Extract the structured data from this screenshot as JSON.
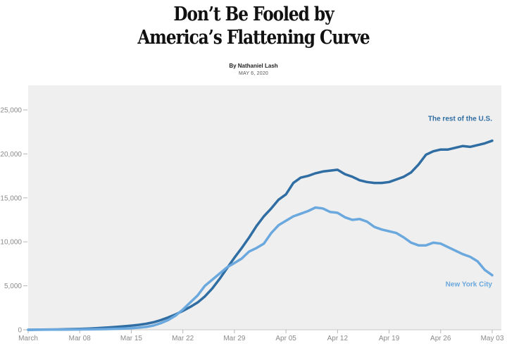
{
  "headline": {
    "line1": "Don’t Be Fooled by",
    "line2": "America’s Flattening Curve"
  },
  "byline": "By Nathaniel Lash",
  "date": "MAY 6, 2020",
  "chart_data": {
    "type": "line",
    "title": "",
    "xlabel": "",
    "ylabel": "",
    "ylim": [
      0,
      25000
    ],
    "yticks": [
      0,
      5000,
      10000,
      15000,
      20000,
      25000
    ],
    "ytick_labels": [
      "0",
      "5,000",
      "10,000",
      "15,000",
      "20,000",
      "25,000"
    ],
    "xticks": [
      {
        "day": 0,
        "label": "March"
      },
      {
        "day": 7,
        "label": "Mar 08"
      },
      {
        "day": 14,
        "label": "Mar 15"
      },
      {
        "day": 21,
        "label": "Mar 22"
      },
      {
        "day": 28,
        "label": "Mar 29"
      },
      {
        "day": 35,
        "label": "Apr 05"
      },
      {
        "day": 42,
        "label": "Apr 12"
      },
      {
        "day": 49,
        "label": "Apr 19"
      },
      {
        "day": 56,
        "label": "Apr 26"
      },
      {
        "day": 63,
        "label": "May 03"
      }
    ],
    "x": [
      0,
      1,
      2,
      3,
      4,
      5,
      6,
      7,
      8,
      9,
      10,
      11,
      12,
      13,
      14,
      15,
      16,
      17,
      18,
      19,
      20,
      21,
      22,
      23,
      24,
      25,
      26,
      27,
      28,
      29,
      30,
      31,
      32,
      33,
      34,
      35,
      36,
      37,
      38,
      39,
      40,
      41,
      42,
      43,
      44,
      45,
      46,
      47,
      48,
      49,
      50,
      51,
      52,
      53,
      54,
      55,
      56,
      57,
      58,
      59,
      60,
      61,
      62,
      63
    ],
    "grid": false,
    "series": [
      {
        "name": "The rest of the U.S.",
        "color": "#2f6da3",
        "values": [
          0,
          10,
          20,
          30,
          40,
          60,
          80,
          100,
          130,
          170,
          220,
          270,
          330,
          400,
          470,
          560,
          680,
          850,
          1100,
          1400,
          1750,
          2150,
          2600,
          3100,
          3800,
          4700,
          5800,
          7000,
          8200,
          9300,
          10500,
          11800,
          12900,
          13800,
          14800,
          15400,
          16700,
          17300,
          17500,
          17800,
          18000,
          18100,
          18200,
          17700,
          17400,
          17000,
          16800,
          16700,
          16700,
          16800,
          17100,
          17400,
          17900,
          18800,
          19900,
          20300,
          20500,
          20500,
          20700,
          20900,
          20800,
          21000,
          21200,
          21500
        ]
      },
      {
        "name": "New York City",
        "color": "#6aa8de",
        "values": [
          0,
          5,
          10,
          15,
          20,
          25,
          30,
          40,
          50,
          60,
          70,
          90,
          110,
          140,
          180,
          240,
          330,
          480,
          750,
          1100,
          1600,
          2300,
          3100,
          3900,
          5000,
          5700,
          6400,
          7100,
          7600,
          8100,
          8900,
          9300,
          9800,
          11000,
          11900,
          12400,
          12900,
          13200,
          13500,
          13900,
          13800,
          13400,
          13300,
          12800,
          12500,
          12600,
          12300,
          11700,
          11400,
          11200,
          11000,
          10500,
          9900,
          9600,
          9600,
          9900,
          9800,
          9400,
          9000,
          8600,
          8300,
          7800,
          6800,
          6200
        ]
      }
    ]
  }
}
